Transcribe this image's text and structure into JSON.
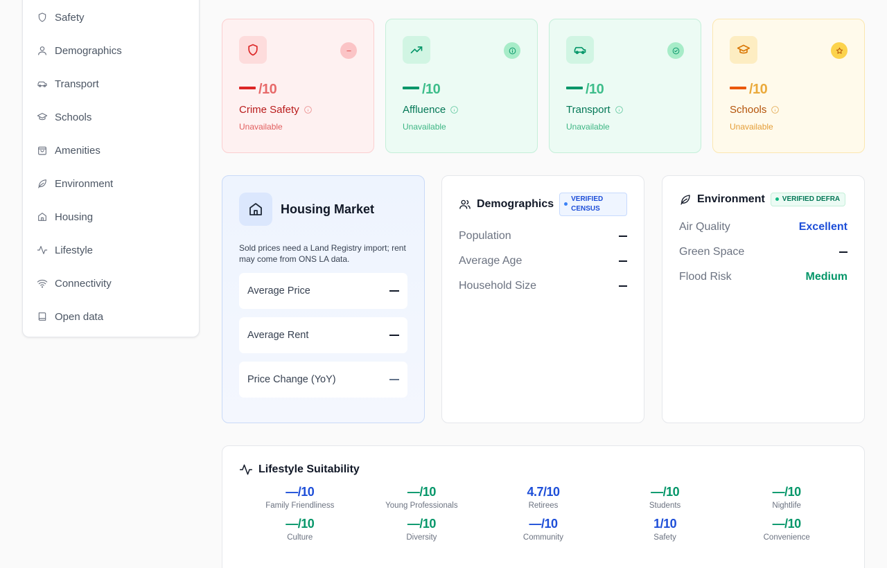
{
  "sidebar": {
    "items": [
      {
        "label": "Safety",
        "icon": "shield-icon"
      },
      {
        "label": "Demographics",
        "icon": "user-icon"
      },
      {
        "label": "Transport",
        "icon": "car-icon"
      },
      {
        "label": "Schools",
        "icon": "graduation-cap-icon"
      },
      {
        "label": "Amenities",
        "icon": "shopping-bag-icon"
      },
      {
        "label": "Environment",
        "icon": "leaf-icon"
      },
      {
        "label": "Housing",
        "icon": "home-icon"
      },
      {
        "label": "Lifestyle",
        "icon": "activity-icon"
      },
      {
        "label": "Connectivity",
        "icon": "wifi-icon"
      },
      {
        "label": "Open data",
        "icon": "book-icon"
      }
    ]
  },
  "scores": [
    {
      "suffix": "/10",
      "label": "Crime Safety",
      "status": "Unavailable",
      "icon": "shield-icon",
      "badge": "minus-circle-icon"
    },
    {
      "suffix": "/10",
      "label": "Affluence",
      "status": "Unavailable",
      "icon": "trending-up-icon",
      "badge": "info-circle-icon"
    },
    {
      "suffix": "/10",
      "label": "Transport",
      "status": "Unavailable",
      "icon": "car-icon",
      "badge": "check-circle-icon"
    },
    {
      "suffix": "/10",
      "label": "Schools",
      "status": "Unavailable",
      "icon": "graduation-cap-icon",
      "badge": "star-circle-icon"
    }
  ],
  "housing": {
    "title": "Housing Market",
    "note": "Sold prices need a Land Registry import; rent may come from ONS LA data.",
    "rows": [
      {
        "label": "Average Price",
        "value": "—"
      },
      {
        "label": "Average Rent",
        "value": "—"
      },
      {
        "label": "Price Change (YoY)",
        "value": "—"
      }
    ]
  },
  "demographics": {
    "title": "Demographics",
    "badge": "VERIFIED CENSUS",
    "rows": [
      {
        "label": "Population",
        "value": "—"
      },
      {
        "label": "Average Age",
        "value": "—"
      },
      {
        "label": "Household Size",
        "value": "—"
      }
    ]
  },
  "environment": {
    "title": "Environment",
    "badge": "VERIFIED DEFRA",
    "rows": [
      {
        "label": "Air Quality",
        "value": "Excellent"
      },
      {
        "label": "Green Space",
        "value": "—"
      },
      {
        "label": "Flood Risk",
        "value": "Medium"
      }
    ]
  },
  "lifestyle": {
    "title": "Lifestyle Suitability",
    "items": [
      {
        "value": "—/10",
        "label": "Family Friendliness",
        "color": "blue"
      },
      {
        "value": "—/10",
        "label": "Young Professionals",
        "color": "green"
      },
      {
        "value": "4.7/10",
        "label": "Retirees",
        "color": "blue"
      },
      {
        "value": "—/10",
        "label": "Students",
        "color": "green"
      },
      {
        "value": "—/10",
        "label": "Nightlife",
        "color": "green"
      },
      {
        "value": "—/10",
        "label": "Culture",
        "color": "green"
      },
      {
        "value": "—/10",
        "label": "Diversity",
        "color": "green"
      },
      {
        "value": "—/10",
        "label": "Community",
        "color": "blue"
      },
      {
        "value": "1/10",
        "label": "Safety",
        "color": "blue"
      },
      {
        "value": "—/10",
        "label": "Convenience",
        "color": "green"
      }
    ]
  },
  "colors": {
    "blue": "#1d4ed8",
    "green": "#059669",
    "red": "#dc2626",
    "amber": "#d97706"
  }
}
